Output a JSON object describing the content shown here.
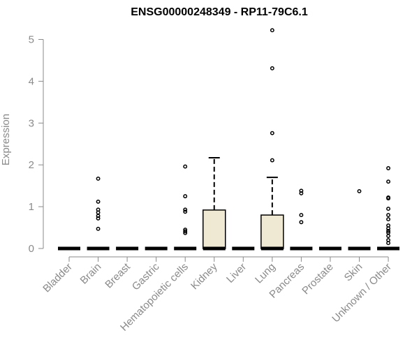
{
  "chart_data": {
    "type": "box",
    "title": "ENSG00000248349 - RP11-79C6.1",
    "xlabel": "",
    "ylabel": "Expression",
    "ylim": [
      0,
      5.25
    ],
    "yticks": [
      0,
      1,
      2,
      3,
      4,
      5
    ],
    "grid": false,
    "legend": "none",
    "box_fill": "#efe8d2",
    "stroke": "#000000",
    "axis_color": "#8a8a8a",
    "categories": [
      "Bladder",
      "Brain",
      "Breast",
      "Gastric",
      "Hematopoietic cells",
      "Kidney",
      "Liver",
      "Lung",
      "Pancreas",
      "Prostate",
      "Skin",
      "Unknown / Other"
    ],
    "boxes": [
      {
        "q1": 0,
        "median": 0,
        "q3": 0,
        "whisker_low": 0,
        "whisker_high": 0,
        "outliers": []
      },
      {
        "q1": 0,
        "median": 0,
        "q3": 0,
        "whisker_low": 0,
        "whisker_high": 0,
        "outliers": [
          1.67,
          1.12,
          0.93,
          0.86,
          0.78,
          0.72,
          0.47
        ]
      },
      {
        "q1": 0,
        "median": 0,
        "q3": 0,
        "whisker_low": 0,
        "whisker_high": 0,
        "outliers": []
      },
      {
        "q1": 0,
        "median": 0,
        "q3": 0,
        "whisker_low": 0,
        "whisker_high": 0,
        "outliers": []
      },
      {
        "q1": 0,
        "median": 0,
        "q3": 0,
        "whisker_low": 0,
        "whisker_high": 0,
        "outliers": [
          1.96,
          1.25,
          0.93,
          0.88,
          0.45,
          0.41,
          0.37
        ]
      },
      {
        "q1": 0,
        "median": 0,
        "q3": 0.92,
        "whisker_low": 0,
        "whisker_high": 2.17,
        "outliers": []
      },
      {
        "q1": 0,
        "median": 0,
        "q3": 0,
        "whisker_low": 0,
        "whisker_high": 0,
        "outliers": []
      },
      {
        "q1": 0,
        "median": 0,
        "q3": 0.8,
        "whisker_low": 0,
        "whisker_high": 1.7,
        "outliers": [
          5.22,
          4.31,
          2.76,
          2.11
        ]
      },
      {
        "q1": 0,
        "median": 0,
        "q3": 0,
        "whisker_low": 0,
        "whisker_high": 0,
        "outliers": [
          1.38,
          1.32,
          0.8,
          0.63
        ]
      },
      {
        "q1": 0,
        "median": 0,
        "q3": 0,
        "whisker_low": 0,
        "whisker_high": 0,
        "outliers": []
      },
      {
        "q1": 0,
        "median": 0,
        "q3": 0,
        "whisker_low": 0,
        "whisker_high": 0,
        "outliers": [
          1.37
        ]
      },
      {
        "q1": 0,
        "median": 0,
        "q3": 0,
        "whisker_low": 0,
        "whisker_high": 0,
        "outliers": [
          1.92,
          1.6,
          1.22,
          1.2,
          0.95,
          0.8,
          0.7,
          0.55,
          0.48,
          0.42,
          0.38,
          0.3,
          0.2,
          0.13
        ]
      }
    ]
  }
}
